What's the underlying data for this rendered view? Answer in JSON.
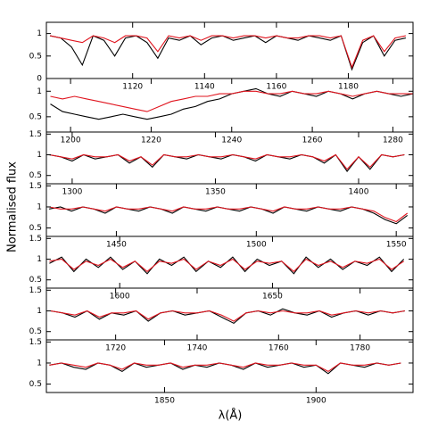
{
  "ylabel": "Normalised flux",
  "xlabel": "λ(Å)",
  "chart_data": [
    {
      "type": "line",
      "xlim": [
        1096,
        1198
      ],
      "xticks": [
        1120,
        1140,
        1160,
        1180
      ],
      "ylim": [
        0,
        1.25
      ],
      "yticks": [
        0,
        0.5,
        1
      ],
      "x": [
        1097,
        1100,
        1103,
        1106,
        1109,
        1112,
        1115,
        1118,
        1121,
        1124,
        1127,
        1130,
        1133,
        1136,
        1139,
        1142,
        1145,
        1148,
        1151,
        1154,
        1157,
        1160,
        1163,
        1166,
        1169,
        1172,
        1175,
        1178,
        1181,
        1184,
        1187,
        1190,
        1193,
        1196
      ],
      "series": [
        {
          "color": "#000000",
          "values": [
            0.95,
            0.9,
            0.7,
            0.3,
            0.95,
            0.85,
            0.5,
            0.9,
            0.95,
            0.8,
            0.45,
            0.9,
            0.85,
            0.95,
            0.75,
            0.9,
            0.95,
            0.85,
            0.9,
            0.95,
            0.8,
            0.95,
            0.9,
            0.85,
            0.95,
            0.9,
            0.85,
            0.95,
            0.2,
            0.8,
            0.95,
            0.5,
            0.85,
            0.9
          ]
        },
        {
          "color": "#e0141e",
          "values": [
            0.95,
            0.9,
            0.85,
            0.8,
            0.95,
            0.9,
            0.8,
            0.95,
            0.95,
            0.9,
            0.6,
            0.95,
            0.9,
            0.95,
            0.85,
            0.95,
            0.95,
            0.9,
            0.95,
            0.95,
            0.9,
            0.95,
            0.9,
            0.9,
            0.95,
            0.95,
            0.9,
            0.95,
            0.25,
            0.85,
            0.95,
            0.6,
            0.9,
            0.95
          ]
        }
      ]
    },
    {
      "type": "line",
      "xlim": [
        1194,
        1285
      ],
      "xticks": [
        1200,
        1220,
        1240,
        1260,
        1280
      ],
      "ylim": [
        0.2,
        1.25
      ],
      "yticks": [
        0.5,
        1
      ],
      "x": [
        1195,
        1198,
        1201,
        1204,
        1207,
        1210,
        1213,
        1216,
        1219,
        1222,
        1225,
        1228,
        1231,
        1234,
        1237,
        1240,
        1243,
        1246,
        1249,
        1252,
        1255,
        1258,
        1261,
        1264,
        1267,
        1270,
        1273,
        1276,
        1279,
        1282,
        1285
      ],
      "series": [
        {
          "color": "#000000",
          "values": [
            0.75,
            0.6,
            0.55,
            0.5,
            0.45,
            0.5,
            0.55,
            0.5,
            0.45,
            0.5,
            0.55,
            0.65,
            0.7,
            0.8,
            0.85,
            0.95,
            1.0,
            1.05,
            0.95,
            0.9,
            1.0,
            0.95,
            0.9,
            1.0,
            0.95,
            0.85,
            0.95,
            1.0,
            0.95,
            0.9,
            0.95
          ]
        },
        {
          "color": "#e0141e",
          "values": [
            0.9,
            0.85,
            0.9,
            0.85,
            0.8,
            0.75,
            0.7,
            0.65,
            0.6,
            0.7,
            0.8,
            0.85,
            0.9,
            0.9,
            0.95,
            0.95,
            1.0,
            1.0,
            0.95,
            0.95,
            1.0,
            0.95,
            0.95,
            1.0,
            0.95,
            0.9,
            0.95,
            1.0,
            0.95,
            0.95,
            0.95
          ]
        }
      ]
    },
    {
      "type": "line",
      "xlim": [
        1291,
        1419
      ],
      "xticks": [
        1300,
        1350,
        1400
      ],
      "ylim": [
        0.3,
        1.55
      ],
      "yticks": [
        0.5,
        1,
        1.5
      ],
      "x": [
        1292,
        1296,
        1300,
        1304,
        1308,
        1312,
        1316,
        1320,
        1324,
        1328,
        1332,
        1336,
        1340,
        1344,
        1348,
        1352,
        1356,
        1360,
        1364,
        1368,
        1372,
        1376,
        1380,
        1384,
        1388,
        1392,
        1396,
        1400,
        1404,
        1408,
        1412,
        1416
      ],
      "series": [
        {
          "color": "#000000",
          "values": [
            1,
            0.95,
            0.85,
            1,
            0.9,
            0.95,
            1,
            0.8,
            0.95,
            0.7,
            1,
            0.95,
            0.9,
            1,
            0.95,
            0.9,
            1,
            0.95,
            0.85,
            1,
            0.95,
            0.9,
            1,
            0.95,
            0.8,
            1,
            0.6,
            0.95,
            0.65,
            1,
            0.95,
            1
          ]
        },
        {
          "color": "#e0141e",
          "values": [
            1,
            0.95,
            0.9,
            1,
            0.95,
            0.95,
            1,
            0.85,
            0.95,
            0.75,
            1,
            0.95,
            0.95,
            1,
            0.95,
            0.95,
            1,
            0.95,
            0.9,
            1,
            0.95,
            0.95,
            1,
            0.95,
            0.85,
            1,
            0.65,
            0.95,
            0.7,
            1,
            0.95,
            1
          ]
        }
      ]
    },
    {
      "type": "line",
      "xlim": [
        1425,
        1556
      ],
      "xticks": [
        1450,
        1500,
        1550
      ],
      "ylim": [
        0.3,
        1.55
      ],
      "yticks": [
        0.5,
        1,
        1.5
      ],
      "x": [
        1426,
        1430,
        1434,
        1438,
        1442,
        1446,
        1450,
        1454,
        1458,
        1462,
        1466,
        1470,
        1474,
        1478,
        1482,
        1486,
        1490,
        1494,
        1498,
        1502,
        1506,
        1510,
        1514,
        1518,
        1522,
        1526,
        1530,
        1534,
        1538,
        1542,
        1546,
        1550,
        1554
      ],
      "series": [
        {
          "color": "#000000",
          "values": [
            0.95,
            1.0,
            0.9,
            1.0,
            0.95,
            0.85,
            1.0,
            0.95,
            0.9,
            1.0,
            0.95,
            0.85,
            1.0,
            0.95,
            0.9,
            1.0,
            0.95,
            0.9,
            1.0,
            0.95,
            0.85,
            1.0,
            0.95,
            0.9,
            1.0,
            0.95,
            0.9,
            1.0,
            0.95,
            0.85,
            0.7,
            0.6,
            0.8
          ]
        },
        {
          "color": "#e0141e",
          "values": [
            1.0,
            0.95,
            0.95,
            1.0,
            0.95,
            0.9,
            1.0,
            0.95,
            0.95,
            1.0,
            0.95,
            0.9,
            1.0,
            0.95,
            0.95,
            1.0,
            0.95,
            0.95,
            1.0,
            0.95,
            0.9,
            1.0,
            0.95,
            0.95,
            1.0,
            0.95,
            0.95,
            1.0,
            0.95,
            0.9,
            0.75,
            0.65,
            0.85
          ]
        }
      ]
    },
    {
      "type": "line",
      "xlim": [
        1576,
        1696
      ],
      "xticks": [
        1600,
        1650
      ],
      "ylim": [
        0.3,
        1.55
      ],
      "yticks": [
        0.5,
        1,
        1.5
      ],
      "x": [
        1577,
        1581,
        1585,
        1589,
        1593,
        1597,
        1601,
        1605,
        1609,
        1613,
        1617,
        1621,
        1625,
        1629,
        1633,
        1637,
        1641,
        1645,
        1649,
        1653,
        1657,
        1661,
        1665,
        1669,
        1673,
        1677,
        1681,
        1685,
        1689,
        1693
      ],
      "series": [
        {
          "color": "#000000",
          "values": [
            0.9,
            1.05,
            0.7,
            1.0,
            0.8,
            1.05,
            0.75,
            0.95,
            0.65,
            1.0,
            0.85,
            1.05,
            0.7,
            0.95,
            0.8,
            1.05,
            0.7,
            1.0,
            0.85,
            0.95,
            0.65,
            1.05,
            0.8,
            1.0,
            0.75,
            0.95,
            0.85,
            1.05,
            0.7,
            1.0
          ]
        },
        {
          "color": "#e0141e",
          "values": [
            0.95,
            1.0,
            0.75,
            0.95,
            0.85,
            1.0,
            0.8,
            0.95,
            0.7,
            0.95,
            0.9,
            1.0,
            0.75,
            0.95,
            0.85,
            1.0,
            0.75,
            0.95,
            0.9,
            0.95,
            0.7,
            1.0,
            0.85,
            0.95,
            0.8,
            0.95,
            0.9,
            1.0,
            0.75,
            0.95
          ]
        }
      ]
    },
    {
      "type": "line",
      "xlim": [
        1703,
        1793
      ],
      "xticks": [
        1720,
        1740,
        1760,
        1780
      ],
      "ylim": [
        0.3,
        1.55
      ],
      "yticks": [
        0.5,
        1,
        1.5
      ],
      "x": [
        1704,
        1707,
        1710,
        1713,
        1716,
        1719,
        1722,
        1725,
        1728,
        1731,
        1734,
        1737,
        1740,
        1743,
        1746,
        1749,
        1752,
        1755,
        1758,
        1761,
        1764,
        1767,
        1770,
        1773,
        1776,
        1779,
        1782,
        1785,
        1788,
        1791
      ],
      "series": [
        {
          "color": "#000000",
          "values": [
            1.0,
            0.95,
            0.85,
            1.0,
            0.8,
            0.95,
            0.9,
            1.0,
            0.75,
            0.95,
            1.0,
            0.9,
            0.95,
            1.0,
            0.85,
            0.7,
            0.95,
            1.0,
            0.9,
            1.05,
            0.95,
            0.9,
            1.0,
            0.85,
            0.95,
            1.0,
            0.9,
            1.0,
            0.95,
            1.0
          ]
        },
        {
          "color": "#e0141e",
          "values": [
            1.0,
            0.95,
            0.9,
            1.0,
            0.85,
            0.95,
            0.95,
            1.0,
            0.8,
            0.95,
            1.0,
            0.95,
            0.95,
            1.0,
            0.9,
            0.75,
            0.95,
            1.0,
            0.95,
            1.0,
            0.95,
            0.95,
            1.0,
            0.9,
            0.95,
            1.0,
            0.95,
            1.0,
            0.95,
            1.0
          ]
        }
      ]
    },
    {
      "type": "line",
      "xlim": [
        1811,
        1932
      ],
      "xticks": [
        1850,
        1900
      ],
      "ylim": [
        0.3,
        1.55
      ],
      "yticks": [
        0.5,
        1,
        1.5
      ],
      "x": [
        1812,
        1816,
        1820,
        1824,
        1828,
        1832,
        1836,
        1840,
        1844,
        1848,
        1852,
        1856,
        1860,
        1864,
        1868,
        1872,
        1876,
        1880,
        1884,
        1888,
        1892,
        1896,
        1900,
        1904,
        1908,
        1912,
        1916,
        1920,
        1924,
        1928
      ],
      "series": [
        {
          "color": "#000000",
          "values": [
            0.95,
            1.0,
            0.9,
            0.85,
            1.0,
            0.95,
            0.8,
            1.0,
            0.9,
            0.95,
            1.0,
            0.85,
            0.95,
            0.9,
            1.0,
            0.95,
            0.85,
            1.0,
            0.9,
            0.95,
            1.0,
            0.9,
            0.95,
            0.75,
            1.0,
            0.95,
            0.9,
            1.0,
            0.95,
            1.0
          ]
        },
        {
          "color": "#e0141e",
          "values": [
            0.95,
            1.0,
            0.95,
            0.9,
            1.0,
            0.95,
            0.85,
            1.0,
            0.95,
            0.95,
            1.0,
            0.9,
            0.95,
            0.95,
            1.0,
            0.95,
            0.9,
            1.0,
            0.95,
            0.95,
            1.0,
            0.95,
            0.95,
            0.8,
            1.0,
            0.95,
            0.95,
            1.0,
            0.95,
            1.0
          ]
        }
      ]
    }
  ]
}
